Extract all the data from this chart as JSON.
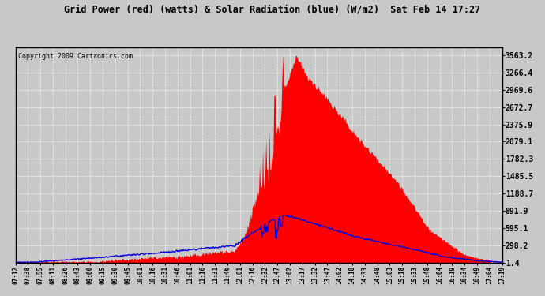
{
  "title": "Grid Power (red) (watts) & Solar Radiation (blue) (W/m2)  Sat Feb 14 17:27",
  "copyright": "Copyright 2009 Cartronics.com",
  "bg_color": "#c8c8c8",
  "plot_bg_color": "#c8c8c8",
  "red_color": "#ff0000",
  "blue_color": "#0000dd",
  "yticks": [
    1.4,
    298.2,
    595.1,
    891.9,
    1188.7,
    1485.5,
    1782.3,
    2079.1,
    2375.9,
    2672.7,
    2969.6,
    3266.4,
    3563.2
  ],
  "ylim": [
    0,
    3700
  ],
  "xtick_labels": [
    "07:12",
    "07:38",
    "07:55",
    "08:11",
    "08:26",
    "08:43",
    "09:00",
    "09:15",
    "09:30",
    "09:45",
    "10:01",
    "10:16",
    "10:31",
    "10:46",
    "11:01",
    "11:16",
    "11:31",
    "11:46",
    "12:01",
    "12:16",
    "12:32",
    "12:47",
    "13:02",
    "13:17",
    "13:32",
    "13:47",
    "14:02",
    "14:18",
    "14:33",
    "14:48",
    "15:03",
    "15:18",
    "15:33",
    "15:48",
    "16:04",
    "16:19",
    "16:34",
    "16:49",
    "17:04",
    "17:19"
  ],
  "figsize": [
    6.9,
    3.75
  ],
  "dpi": 100
}
